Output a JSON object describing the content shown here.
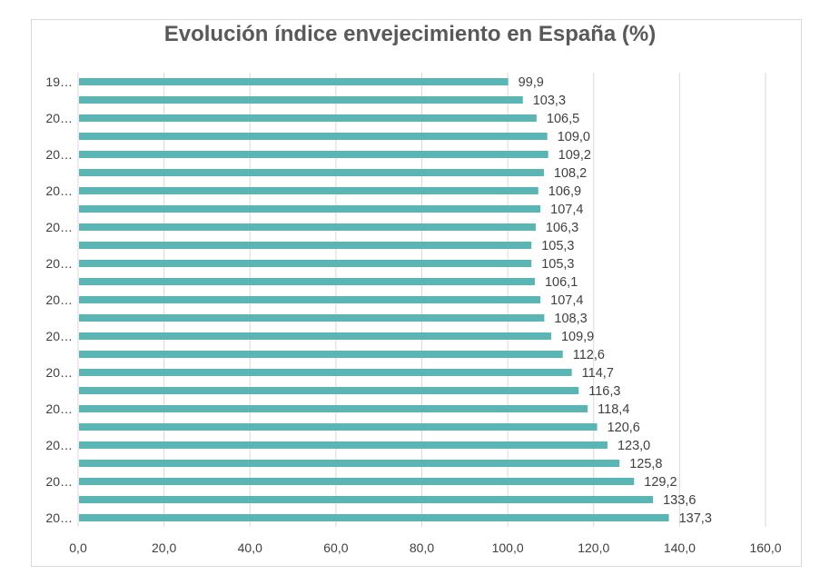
{
  "chart_data": {
    "type": "bar",
    "orientation": "horizontal",
    "title": "Evolución índice envejecimiento en España (%)",
    "xlabel": "",
    "ylabel": "",
    "xlim": [
      0,
      160
    ],
    "x_ticks": [
      "0,0",
      "20,0",
      "40,0",
      "60,0",
      "80,0",
      "100,0",
      "120,0",
      "140,0",
      "160,0"
    ],
    "category_tick_labels": [
      "19…",
      "",
      "20…",
      "",
      "20…",
      "",
      "20…",
      "",
      "20…",
      "",
      "20…",
      "",
      "20…",
      "",
      "20…",
      "",
      "20…",
      "",
      "20…",
      "",
      "20…",
      "",
      "20…",
      "",
      "20…"
    ],
    "values": [
      99.9,
      103.3,
      106.5,
      109.0,
      109.2,
      108.2,
      106.9,
      107.4,
      106.3,
      105.3,
      105.3,
      106.1,
      107.4,
      108.3,
      109.9,
      112.6,
      114.7,
      116.3,
      118.4,
      120.6,
      123.0,
      125.8,
      129.2,
      133.6,
      137.3
    ],
    "data_labels": [
      "99,9",
      "103,3",
      "106,5",
      "109,0",
      "109,2",
      "108,2",
      "106,9",
      "107,4",
      "106,3",
      "105,3",
      "105,3",
      "106,1",
      "107,4",
      "108,3",
      "109,9",
      "112,6",
      "114,7",
      "116,3",
      "118,4",
      "120,6",
      "123,0",
      "125,8",
      "129,2",
      "133,6",
      "137,3"
    ],
    "bar_color": "#5ab5b4",
    "gridlines": true,
    "gridline_color": "#d9d9d9",
    "legend": "none"
  }
}
